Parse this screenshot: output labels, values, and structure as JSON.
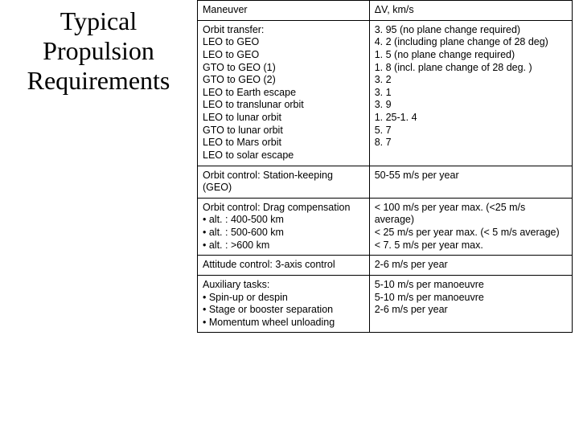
{
  "title": "Typical Propulsion Requirements",
  "header": {
    "c1": "Maneuver",
    "c2": "ΔV, km/s"
  },
  "rows": [
    {
      "c1": [
        "Orbit transfer:",
        "LEO to GEO",
        "LEO to GEO",
        "GTO to GEO (1)",
        "GTO to GEO (2)",
        "LEO to Earth escape",
        "LEO to translunar orbit",
        "LEO to lunar orbit",
        "GTO to lunar orbit",
        "LEO to Mars orbit",
        "LEO to solar escape"
      ],
      "c2": [
        "3. 95 (no plane change required)",
        "4. 2 (including plane change of 28 deg)",
        "1. 5 (no plane change required)",
        "1. 8 (incl. plane change of 28 deg. )",
        "3. 2",
        "3. 1",
        "3. 9",
        "1. 25-1. 4",
        "5. 7",
        "8. 7"
      ]
    },
    {
      "c1": [
        "Orbit control: Station-keeping (GEO)"
      ],
      "c2": [
        "50-55 m/s per year"
      ]
    },
    {
      "c1": [
        "Orbit control: Drag compensation",
        "• alt. : 400-500 km",
        "• alt. : 500-600 km",
        "• alt. : >600 km"
      ],
      "c2": [
        "< 100 m/s per year max. (<25 m/s average)",
        "< 25 m/s per year max. (< 5 m/s average)",
        "< 7. 5 m/s per year max."
      ]
    },
    {
      "c1": [
        "Attitude control: 3-axis control"
      ],
      "c2": [
        "2-6 m/s per year"
      ]
    },
    {
      "c1": [
        "Auxiliary tasks:",
        "• Spin-up or despin",
        "• Stage or booster separation",
        "• Momentum wheel unloading"
      ],
      "c2": [
        "5-10 m/s per manoeuvre",
        "5-10 m/s per manoeuvre",
        "2-6 m/s per year"
      ]
    }
  ]
}
